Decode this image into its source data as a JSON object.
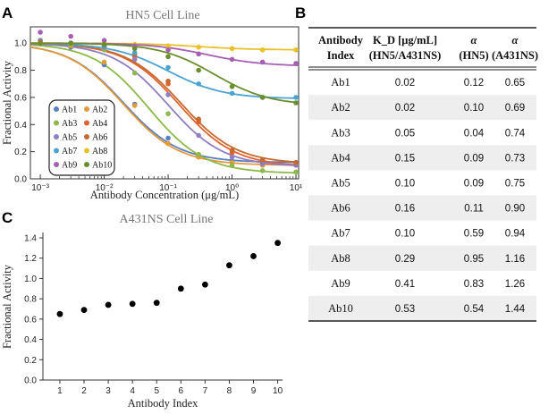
{
  "panels": {
    "a": "A",
    "b": "B",
    "c": "C"
  },
  "chart_data": [
    {
      "type": "line",
      "title": "HN5 Cell Line",
      "xlabel": "Antibody Concentration (μg/mL)",
      "ylabel": "Fractional Activity",
      "xscale": "log",
      "xlim": [
        0.0007,
        11
      ],
      "ylim": [
        0.0,
        1.12
      ],
      "x_ticks": [
        "10⁻³",
        "10⁻²",
        "10⁻¹",
        "10⁰",
        "10¹"
      ],
      "y_ticks": [
        "0.0",
        "0.2",
        "0.4",
        "0.6",
        "0.8",
        "1.0"
      ],
      "legend_position": "bottom-left",
      "x_points": [
        0.001,
        0.003,
        0.01,
        0.03,
        0.1,
        0.3,
        1,
        3,
        10
      ],
      "series": [
        {
          "name": "Ab1",
          "color": "#5b7fbf",
          "kd": 0.02,
          "alpha": 0.12,
          "values": [
            1.02,
            0.97,
            0.84,
            0.55,
            0.3,
            0.17,
            0.13,
            0.12,
            0.12
          ]
        },
        {
          "name": "Ab2",
          "color": "#e39a3a",
          "kd": 0.02,
          "alpha": 0.1,
          "values": [
            1.0,
            0.98,
            0.86,
            0.54,
            0.26,
            0.16,
            0.12,
            0.1,
            0.11
          ]
        },
        {
          "name": "Ab3",
          "color": "#8db94a",
          "kd": 0.05,
          "alpha": 0.04,
          "values": [
            1.0,
            0.99,
            0.95,
            0.78,
            0.48,
            0.18,
            0.1,
            0.06,
            0.05
          ]
        },
        {
          "name": "Ab4",
          "color": "#e0622e",
          "kd": 0.15,
          "alpha": 0.09,
          "values": [
            1.01,
            1.0,
            0.98,
            0.9,
            0.7,
            0.42,
            0.19,
            0.12,
            0.1
          ]
        },
        {
          "name": "Ab5",
          "color": "#8f7ec1",
          "kd": 0.1,
          "alpha": 0.09,
          "values": [
            1.0,
            1.0,
            0.97,
            0.88,
            0.62,
            0.32,
            0.16,
            0.11,
            0.1
          ]
        },
        {
          "name": "Ab6",
          "color": "#c56a2f",
          "kd": 0.16,
          "alpha": 0.11,
          "values": [
            1.0,
            1.0,
            0.98,
            0.92,
            0.72,
            0.44,
            0.21,
            0.14,
            0.12
          ]
        },
        {
          "name": "Ab7",
          "color": "#4aa3d0",
          "kd": 0.1,
          "alpha": 0.59,
          "values": [
            1.0,
            1.0,
            0.98,
            0.93,
            0.82,
            0.7,
            0.63,
            0.6,
            0.6
          ]
        },
        {
          "name": "Ab8",
          "color": "#e9c12a",
          "kd": 0.29,
          "alpha": 0.95,
          "values": [
            1.0,
            1.0,
            1.0,
            0.99,
            0.98,
            0.97,
            0.96,
            0.95,
            0.95
          ]
        },
        {
          "name": "Ab9",
          "color": "#a75fb3",
          "kd": 0.41,
          "alpha": 0.83,
          "values": [
            1.08,
            1.05,
            1.02,
            0.98,
            0.95,
            0.92,
            0.88,
            0.86,
            0.85
          ]
        },
        {
          "name": "Ab10",
          "color": "#6a8e2e",
          "kd": 0.53,
          "alpha": 0.54,
          "values": [
            1.0,
            1.0,
            0.99,
            0.96,
            0.9,
            0.8,
            0.68,
            0.6,
            0.56
          ]
        }
      ]
    },
    {
      "type": "table",
      "columns": [
        {
          "l1": "Antibody",
          "l2": "Index"
        },
        {
          "l1": "K_D [μg/mL]",
          "l2": "(HN5/A431NS)"
        },
        {
          "l1": "α",
          "l2": "(HN5)"
        },
        {
          "l1": "α",
          "l2": "(A431NS)"
        }
      ],
      "rows": [
        [
          "Ab1",
          "0.02",
          "0.12",
          "0.65"
        ],
        [
          "Ab2",
          "0.02",
          "0.10",
          "0.69"
        ],
        [
          "Ab3",
          "0.05",
          "0.04",
          "0.74"
        ],
        [
          "Ab4",
          "0.15",
          "0.09",
          "0.73"
        ],
        [
          "Ab5",
          "0.10",
          "0.09",
          "0.75"
        ],
        [
          "Ab6",
          "0.16",
          "0.11",
          "0.90"
        ],
        [
          "Ab7",
          "0.10",
          "0.59",
          "0.94"
        ],
        [
          "Ab8",
          "0.29",
          "0.95",
          "1.16"
        ],
        [
          "Ab9",
          "0.41",
          "0.83",
          "1.26"
        ],
        [
          "Ab10",
          "0.53",
          "0.54",
          "1.44"
        ]
      ],
      "stripe_color": "#eeeeee"
    },
    {
      "type": "scatter",
      "title": "A431NS Cell Line",
      "xlabel": "Antibody Index",
      "ylabel": "Fractional Activity",
      "xlim": [
        0.3,
        10.2
      ],
      "ylim": [
        0.0,
        1.4
      ],
      "x_ticks": [
        "1",
        "2",
        "3",
        "4",
        "5",
        "6",
        "7",
        "8",
        "9",
        "10"
      ],
      "y_ticks": [
        "0.0",
        "0.2",
        "0.4",
        "0.6",
        "0.8",
        "1.0",
        "1.2",
        "1.4"
      ],
      "x": [
        1,
        2,
        3,
        4,
        5,
        6,
        7,
        8,
        9,
        10
      ],
      "y": [
        0.65,
        0.69,
        0.74,
        0.75,
        0.76,
        0.9,
        0.94,
        1.13,
        1.22,
        1.35
      ]
    }
  ]
}
